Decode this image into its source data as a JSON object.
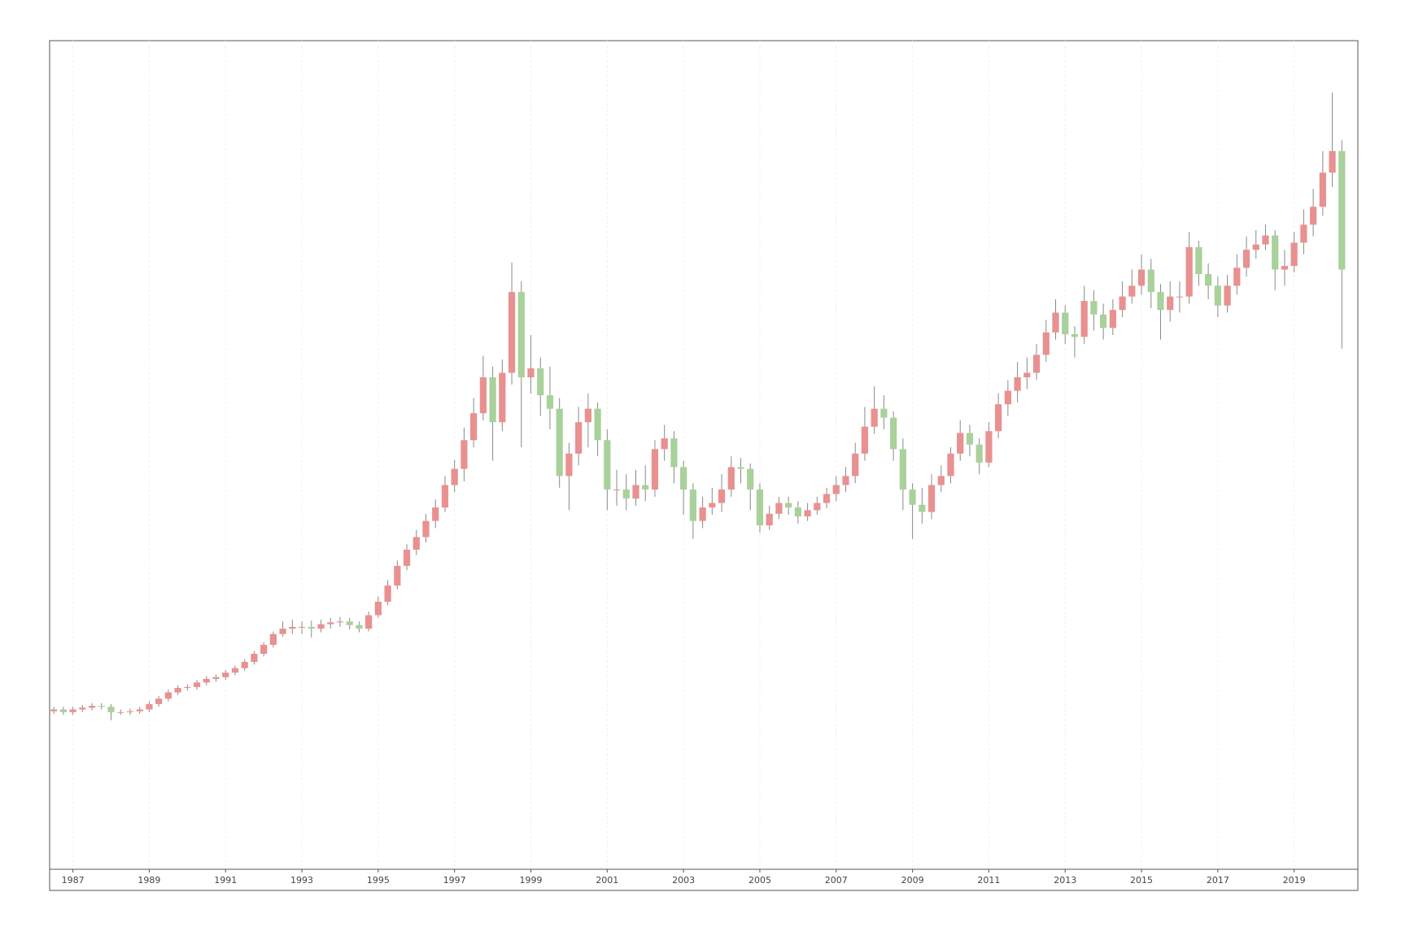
{
  "chart_data": {
    "type": "candlestick",
    "x": [
      1986.5,
      1986.75,
      1987,
      1987.25,
      1987.5,
      1987.75,
      1988,
      1988.25,
      1988.5,
      1988.75,
      1989,
      1989.25,
      1989.5,
      1989.75,
      1990,
      1990.25,
      1990.5,
      1990.75,
      1991,
      1991.25,
      1991.5,
      1991.75,
      1992,
      1992.25,
      1992.5,
      1992.75,
      1993,
      1993.25,
      1993.5,
      1993.75,
      1994,
      1994.25,
      1994.5,
      1994.75,
      1995,
      1995.25,
      1995.5,
      1995.75,
      1996,
      1996.25,
      1996.5,
      1996.75,
      1997,
      1997.25,
      1997.5,
      1997.75,
      1998,
      1998.25,
      1998.5,
      1998.75,
      1999,
      1999.25,
      1999.5,
      1999.75,
      2000,
      2000.25,
      2000.5,
      2000.75,
      2001,
      2001.25,
      2001.5,
      2001.75,
      2002,
      2002.25,
      2002.5,
      2002.75,
      2003,
      2003.25,
      2003.5,
      2003.75,
      2004,
      2004.25,
      2004.5,
      2004.75,
      2005,
      2005.25,
      2005.5,
      2005.75,
      2006,
      2006.25,
      2006.5,
      2006.75,
      2007,
      2007.25,
      2007.5,
      2007.75,
      2008,
      2008.25,
      2008.5,
      2008.75,
      2009,
      2009.25,
      2009.5,
      2009.75,
      2010,
      2010.25,
      2010.5,
      2010.75,
      2011,
      2011.25,
      2011.5,
      2011.75,
      2012,
      2012.25,
      2012.5,
      2012.75,
      2013,
      2013.25,
      2013.5,
      2013.75,
      2014,
      2014.25,
      2014.5,
      2014.75,
      2015,
      2015.25,
      2015.5,
      2015.75,
      2016,
      2016.25,
      2016.5,
      2016.75,
      2017,
      2017.25,
      2017.5,
      2017.75,
      2018,
      2018.25,
      2018.5,
      2018.75,
      2019,
      2019.25,
      2019.5,
      2019.75,
      2020,
      2020.25
    ],
    "open": [
      176,
      178,
      175,
      178,
      180,
      182,
      181,
      175,
      175,
      176,
      178,
      184,
      190,
      197,
      202,
      203,
      208,
      212,
      214,
      219,
      224,
      231,
      240,
      250,
      262,
      268,
      270,
      270,
      268,
      273,
      275,
      276,
      272,
      268,
      283,
      298,
      316,
      338,
      356,
      370,
      388,
      403,
      428,
      446,
      478,
      508,
      548,
      498,
      553,
      643,
      548,
      558,
      528,
      513,
      438,
      463,
      498,
      513,
      478,
      423,
      423,
      413,
      428,
      423,
      468,
      480,
      448,
      423,
      388,
      403,
      408,
      423,
      448,
      446,
      423,
      383,
      396,
      408,
      403,
      393,
      400,
      408,
      418,
      428,
      438,
      463,
      493,
      513,
      503,
      468,
      423,
      406,
      398,
      428,
      438,
      463,
      486,
      473,
      453,
      488,
      518,
      533,
      548,
      553,
      573,
      598,
      620,
      596,
      593,
      633,
      618,
      603,
      623,
      638,
      650,
      668,
      643,
      623,
      638,
      638,
      693,
      663,
      650,
      628,
      650,
      670,
      690,
      696,
      706,
      668,
      672,
      698,
      718,
      738,
      776,
      800
    ],
    "high": [
      181,
      181,
      181,
      183,
      185,
      185,
      184,
      178,
      179,
      181,
      187,
      193,
      200,
      205,
      206,
      211,
      215,
      217,
      222,
      227,
      234,
      243,
      253,
      265,
      276,
      278,
      276,
      277,
      278,
      280,
      281,
      280,
      276,
      287,
      304,
      322,
      344,
      362,
      378,
      396,
      412,
      438,
      456,
      492,
      525,
      572,
      560,
      568,
      676,
      655,
      595,
      570,
      560,
      525,
      475,
      515,
      530,
      520,
      490,
      445,
      440,
      445,
      450,
      478,
      495,
      488,
      455,
      430,
      415,
      425,
      440,
      460,
      458,
      452,
      430,
      405,
      415,
      415,
      410,
      408,
      415,
      425,
      438,
      448,
      475,
      515,
      538,
      528,
      510,
      480,
      430,
      425,
      440,
      450,
      470,
      500,
      495,
      480,
      498,
      530,
      545,
      565,
      570,
      585,
      612,
      635,
      628,
      605,
      650,
      645,
      630,
      635,
      655,
      668,
      685,
      680,
      652,
      655,
      655,
      710,
      700,
      675,
      660,
      662,
      685,
      705,
      712,
      718,
      712,
      690,
      710,
      735,
      758,
      800,
      865,
      812
    ],
    "low": [
      173,
      172,
      172,
      175,
      177,
      178,
      166,
      172,
      172,
      173,
      175,
      181,
      187,
      194,
      199,
      200,
      205,
      209,
      211,
      216,
      221,
      228,
      237,
      247,
      259,
      262,
      262,
      258,
      264,
      268,
      270,
      267,
      264,
      265,
      280,
      294,
      312,
      333,
      350,
      364,
      380,
      398,
      420,
      432,
      470,
      500,
      455,
      488,
      540,
      470,
      530,
      505,
      490,
      425,
      400,
      450,
      470,
      460,
      400,
      405,
      400,
      405,
      410,
      415,
      455,
      430,
      395,
      368,
      380,
      395,
      398,
      415,
      430,
      400,
      375,
      378,
      390,
      395,
      385,
      388,
      395,
      402,
      410,
      420,
      430,
      455,
      485,
      490,
      455,
      400,
      368,
      385,
      390,
      420,
      430,
      455,
      460,
      440,
      448,
      480,
      505,
      520,
      535,
      545,
      565,
      590,
      585,
      570,
      585,
      600,
      590,
      595,
      615,
      630,
      640,
      625,
      590,
      610,
      620,
      630,
      650,
      635,
      615,
      620,
      640,
      660,
      680,
      690,
      645,
      650,
      665,
      685,
      705,
      728,
      760,
      580
    ],
    "close": [
      178,
      175,
      178,
      180,
      182,
      181,
      175,
      175,
      176,
      178,
      184,
      190,
      197,
      202,
      203,
      208,
      212,
      214,
      219,
      224,
      231,
      240,
      250,
      262,
      268,
      270,
      270,
      268,
      273,
      275,
      276,
      272,
      268,
      283,
      298,
      316,
      338,
      356,
      370,
      388,
      403,
      428,
      446,
      478,
      508,
      548,
      498,
      553,
      643,
      548,
      558,
      528,
      513,
      438,
      463,
      498,
      513,
      478,
      423,
      423,
      413,
      428,
      423,
      468,
      480,
      448,
      423,
      388,
      403,
      408,
      423,
      448,
      446,
      423,
      383,
      396,
      408,
      403,
      393,
      400,
      408,
      418,
      428,
      438,
      463,
      493,
      513,
      503,
      468,
      423,
      406,
      398,
      428,
      438,
      463,
      486,
      473,
      453,
      488,
      518,
      533,
      548,
      553,
      573,
      598,
      620,
      596,
      593,
      633,
      618,
      603,
      623,
      638,
      650,
      668,
      643,
      623,
      638,
      638,
      693,
      663,
      650,
      628,
      650,
      670,
      690,
      696,
      706,
      668,
      672,
      698,
      718,
      738,
      776,
      800,
      668
    ],
    "up_color": "#e99090",
    "down_color": "#a9d19b",
    "wick_color": "#8a8a8a",
    "xlim": [
      1986.39,
      2020.67
    ],
    "ylim": [
      0,
      923
    ],
    "xticks": [
      1987,
      1989,
      1991,
      1993,
      1995,
      1997,
      1999,
      2001,
      2003,
      2005,
      2007,
      2009,
      2011,
      2013,
      2015,
      2017,
      2019
    ],
    "grid": true
  }
}
